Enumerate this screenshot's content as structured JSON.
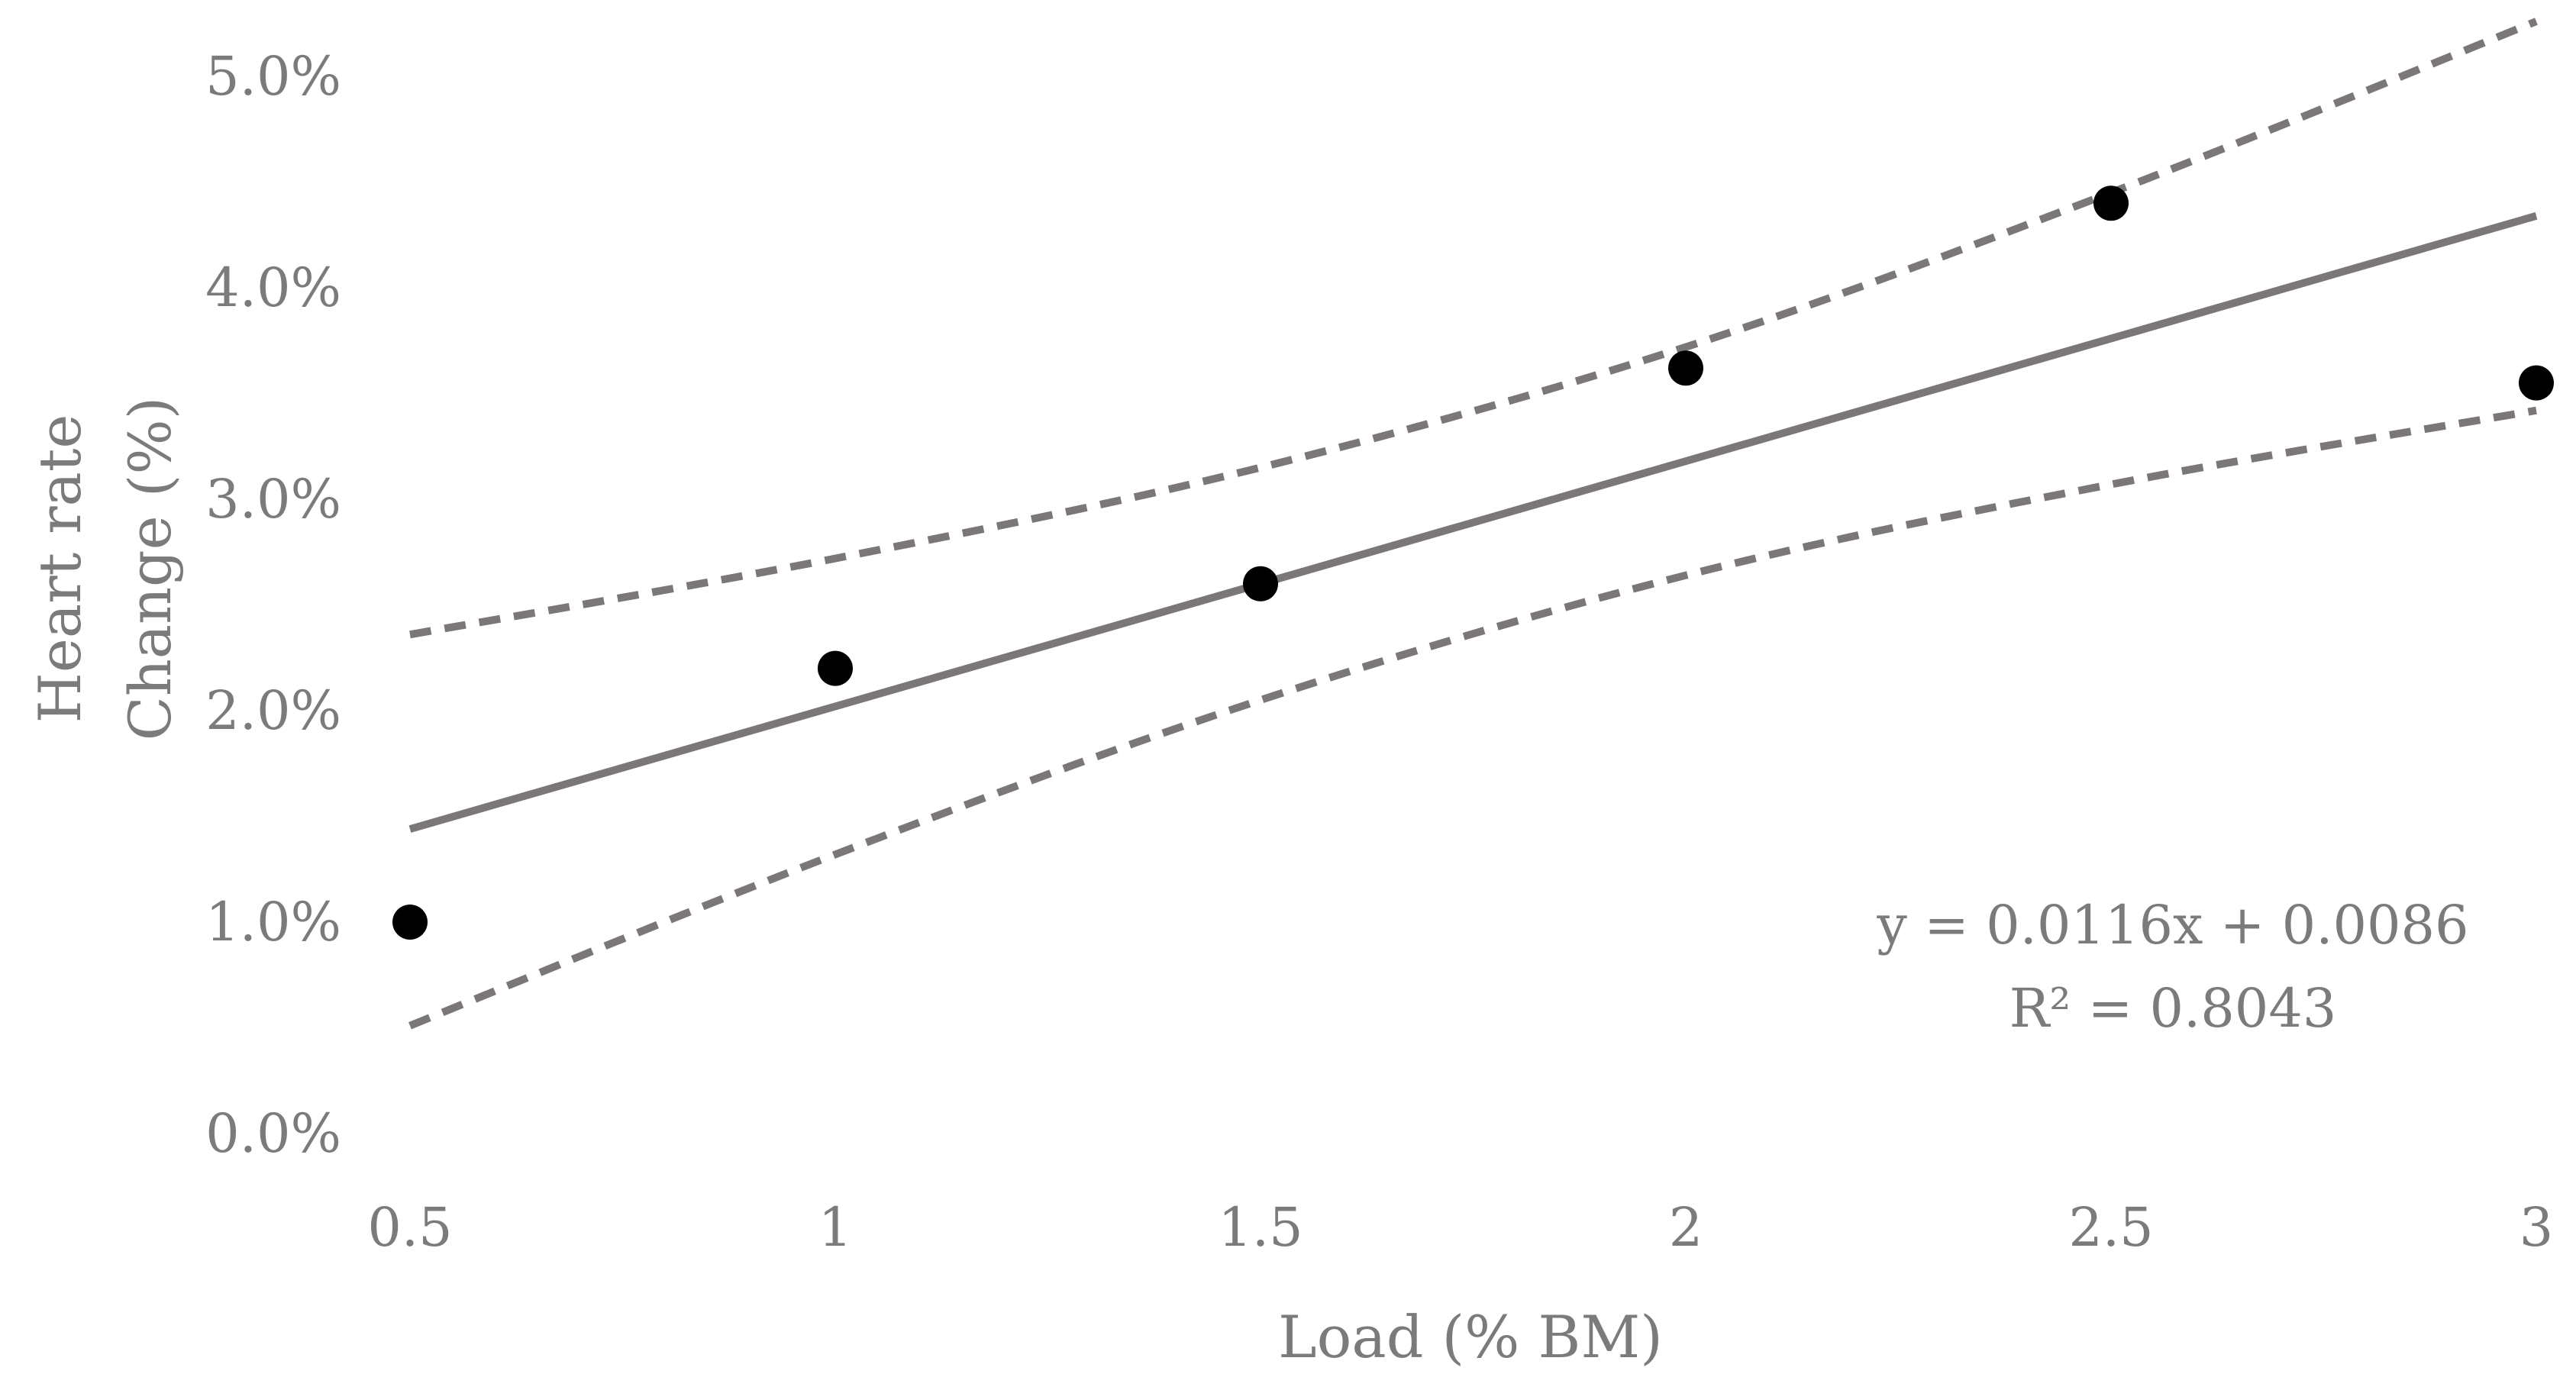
{
  "chart_data": {
    "type": "scatter",
    "xlabel": "Load (% BM)",
    "ylabel_lines": [
      "Heart rate",
      "Change (%)"
    ],
    "x_ticks": [
      "0.5",
      "1",
      "1.5",
      "2",
      "2.5",
      "3"
    ],
    "y_ticks": [
      "0.0%",
      "1.0%",
      "2.0%",
      "3.0%",
      "4.0%",
      "5.0%"
    ],
    "xlim": [
      0.5,
      3
    ],
    "ylim": [
      0,
      0.05
    ],
    "grid": false,
    "series": [
      {
        "type": "scatter",
        "x": [
          0.5,
          1,
          1.5,
          2,
          2.5,
          3
        ],
        "y": [
          0.01,
          0.022,
          0.026,
          0.0362,
          0.044,
          0.0355
        ],
        "color": "#000000"
      }
    ],
    "trendline": {
      "slope": 0.0116,
      "intercept": 0.0086,
      "x_range": [
        0.5,
        3
      ],
      "color": "#7b7677",
      "style": "solid"
    },
    "confidence_band": {
      "upper": {
        "x": [
          0.5,
          1,
          1.5,
          2,
          2.5,
          3
        ],
        "y": [
          0.0236,
          0.0272,
          0.0315,
          0.0372,
          0.0445,
          0.0526
        ]
      },
      "lower": {
        "x": [
          0.5,
          1,
          1.5,
          2,
          2.5,
          3
        ],
        "y": [
          0.0051,
          0.0132,
          0.0205,
          0.0264,
          0.0307,
          0.0342
        ]
      },
      "color": "#7b7677",
      "style": "dashed"
    },
    "annotations": [
      "y = 0.0116x + 0.0086",
      "R² = 0.8043"
    ],
    "colors": {
      "text": "#7b7b7b",
      "line": "#7b7677",
      "point": "#000000"
    }
  }
}
